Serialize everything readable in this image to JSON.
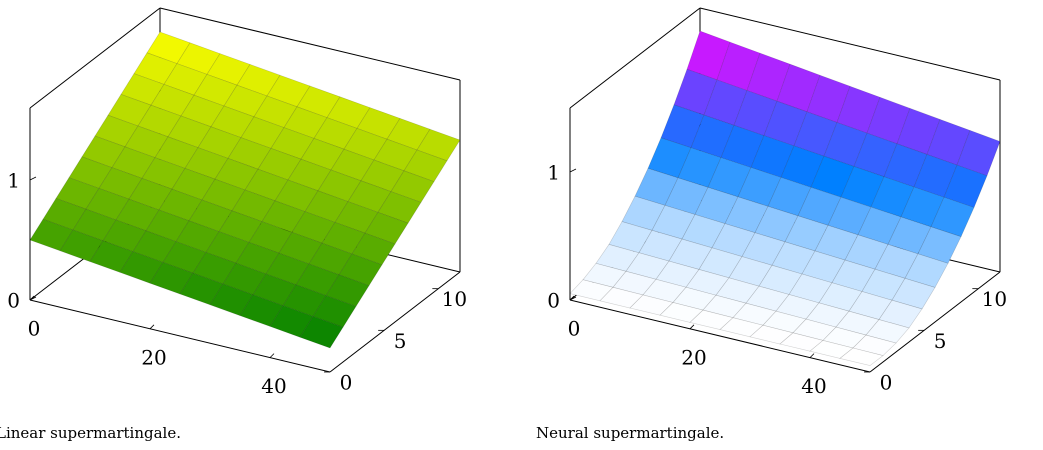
{
  "chart_data": [
    {
      "type": "surface",
      "caption": "Linear supermartingale.",
      "x": [
        0,
        5,
        10,
        15,
        20,
        25,
        30,
        35,
        40,
        45,
        50
      ],
      "y": [
        0,
        1.2,
        2.4,
        3.6,
        4.8,
        6,
        7.2,
        8.4,
        9.6,
        10.8,
        12
      ],
      "z": [
        [
          0.5,
          0.47,
          0.44,
          0.41,
          0.38,
          0.35,
          0.32,
          0.29,
          0.26,
          0.23,
          0.2
        ],
        [
          0.59,
          0.56,
          0.53,
          0.5,
          0.47,
          0.44,
          0.41,
          0.38,
          0.35,
          0.32,
          0.29
        ],
        [
          0.68,
          0.65,
          0.62,
          0.59,
          0.56,
          0.53,
          0.5,
          0.47,
          0.44,
          0.41,
          0.38
        ],
        [
          0.77,
          0.74,
          0.71,
          0.68,
          0.65,
          0.62,
          0.59,
          0.56,
          0.53,
          0.5,
          0.47
        ],
        [
          0.86,
          0.83,
          0.8,
          0.77,
          0.74,
          0.71,
          0.68,
          0.65,
          0.62,
          0.59,
          0.56
        ],
        [
          0.95,
          0.92,
          0.89,
          0.86,
          0.83,
          0.8,
          0.77,
          0.74,
          0.71,
          0.68,
          0.65
        ],
        [
          1.04,
          1.01,
          0.98,
          0.95,
          0.92,
          0.89,
          0.86,
          0.83,
          0.8,
          0.77,
          0.74
        ],
        [
          1.13,
          1.1,
          1.07,
          1.04,
          1.01,
          0.98,
          0.95,
          0.92,
          0.89,
          0.86,
          0.83
        ],
        [
          1.22,
          1.19,
          1.16,
          1.13,
          1.1,
          1.07,
          1.04,
          1.01,
          0.98,
          0.95,
          0.92
        ],
        [
          1.31,
          1.28,
          1.25,
          1.22,
          1.19,
          1.16,
          1.13,
          1.1,
          1.07,
          1.04,
          1.01
        ],
        [
          1.4,
          1.37,
          1.34,
          1.31,
          1.28,
          1.25,
          1.22,
          1.19,
          1.16,
          1.13,
          1.1
        ]
      ],
      "xlim": [
        0,
        50
      ],
      "ylim": [
        0,
        12
      ],
      "zlim": [
        0,
        1.6
      ],
      "xticks": [
        0,
        20,
        40
      ],
      "yticks": [
        0,
        5,
        10
      ],
      "zticks": [
        0,
        1
      ],
      "colormap": [
        "#008000",
        "#ffff00"
      ]
    },
    {
      "type": "surface",
      "caption": "Neural supermartingale.",
      "x": [
        0,
        5,
        10,
        15,
        20,
        25,
        30,
        35,
        40,
        45,
        50
      ],
      "y": [
        0,
        1.2,
        2.4,
        3.6,
        4.8,
        6,
        7.2,
        8.4,
        9.6,
        10.8,
        12
      ],
      "z": [
        [
          0.05,
          0.05,
          0.05,
          0.05,
          0.05,
          0.05,
          0.05,
          0.05,
          0.05,
          0.05,
          0.05
        ],
        [
          0.08,
          0.077,
          0.074,
          0.071,
          0.068,
          0.065,
          0.062,
          0.059,
          0.056,
          0.053,
          0.05
        ],
        [
          0.13,
          0.124,
          0.118,
          0.112,
          0.106,
          0.1,
          0.094,
          0.088,
          0.082,
          0.076,
          0.07
        ],
        [
          0.2,
          0.191,
          0.182,
          0.173,
          0.164,
          0.155,
          0.146,
          0.137,
          0.128,
          0.119,
          0.11
        ],
        [
          0.3,
          0.288,
          0.276,
          0.264,
          0.252,
          0.24,
          0.228,
          0.216,
          0.204,
          0.192,
          0.18
        ],
        [
          0.42,
          0.405,
          0.39,
          0.375,
          0.36,
          0.345,
          0.33,
          0.315,
          0.3,
          0.285,
          0.27
        ],
        [
          0.56,
          0.542,
          0.524,
          0.506,
          0.488,
          0.47,
          0.452,
          0.434,
          0.416,
          0.398,
          0.38
        ],
        [
          0.72,
          0.699,
          0.678,
          0.657,
          0.636,
          0.615,
          0.594,
          0.573,
          0.552,
          0.531,
          0.51
        ],
        [
          0.9,
          0.876,
          0.852,
          0.828,
          0.804,
          0.78,
          0.756,
          0.732,
          0.708,
          0.684,
          0.66
        ],
        [
          1.1,
          1.073,
          1.046,
          1.019,
          0.992,
          0.965,
          0.938,
          0.911,
          0.884,
          0.857,
          0.83
        ],
        [
          1.32,
          1.29,
          1.26,
          1.23,
          1.2,
          1.17,
          1.14,
          1.11,
          1.08,
          1.05,
          1.02
        ]
      ],
      "xlim": [
        0,
        50
      ],
      "ylim": [
        0,
        12
      ],
      "zlim": [
        0,
        1.5
      ],
      "xticks": [
        0,
        20,
        40
      ],
      "yticks": [
        0,
        5,
        10
      ],
      "zticks": [
        0,
        1
      ],
      "colormap": [
        "#ffffff",
        "#a8d4ff",
        "#0080ff",
        "#7040ff",
        "#ff00ff"
      ]
    }
  ]
}
